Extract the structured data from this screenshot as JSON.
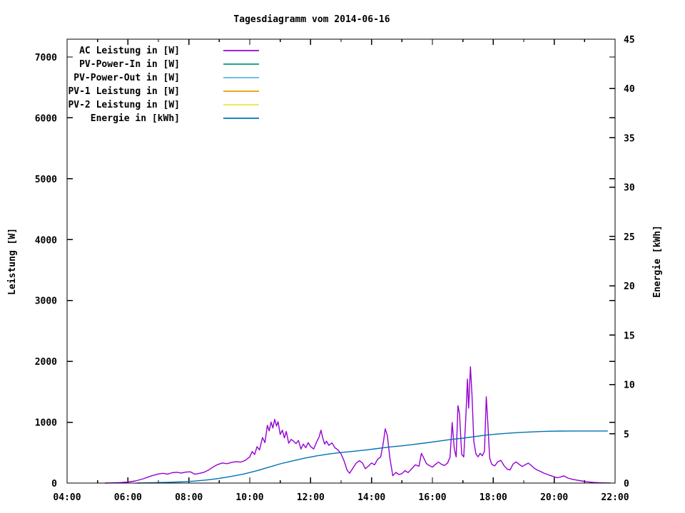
{
  "title": "Tagesdiagramm vom 2014-06-16",
  "colors": {
    "background": "#ffffff",
    "axis": "#000000",
    "ac": "#9400d3",
    "pv_power_in": "#009e73",
    "pv_power_out": "#56b4e9",
    "pv1": "#e69f00",
    "pv2": "#f0e442",
    "energie": "#0072b2"
  },
  "axes": {
    "x": {
      "min_hour": 4,
      "max_hour": 22,
      "major_ticks": [
        {
          "hour": 4,
          "label": "04:00"
        },
        {
          "hour": 6,
          "label": "06:00"
        },
        {
          "hour": 8,
          "label": "08:00"
        },
        {
          "hour": 10,
          "label": "10:00"
        },
        {
          "hour": 12,
          "label": "12:00"
        },
        {
          "hour": 14,
          "label": "14:00"
        },
        {
          "hour": 16,
          "label": "16:00"
        },
        {
          "hour": 18,
          "label": "18:00"
        },
        {
          "hour": 20,
          "label": "20:00"
        },
        {
          "hour": 22,
          "label": "22:00"
        }
      ],
      "minor_tick_hours": [
        5,
        7,
        9,
        11,
        13,
        15,
        17,
        19,
        21
      ]
    },
    "y_left": {
      "label": "Leistung [W]",
      "min": 0,
      "max_tick": 7000,
      "tick_step": 1000,
      "ticks": [
        "0",
        "1000",
        "2000",
        "3000",
        "4000",
        "5000",
        "6000",
        "7000"
      ]
    },
    "y_right": {
      "label": "Energie [kWh]",
      "min": 0,
      "max_tick": 45,
      "tick_step": 5,
      "ticks": [
        "0",
        "5",
        "10",
        "15",
        "20",
        "25",
        "30",
        "35",
        "40",
        "45"
      ]
    }
  },
  "chart_data": {
    "type": "line",
    "title": "Tagesdiagramm vom 2014-06-16",
    "xlabel": "",
    "x_format": "HH:MM",
    "x_range_hours": [
      4,
      22
    ],
    "y_left_label": "Leistung [W]",
    "y_left_range": [
      0,
      7292
    ],
    "y_right_label": "Energie [kWh]",
    "y_right_range": [
      0,
      45
    ],
    "grid": false,
    "legend_position": "top-left-inside",
    "series": [
      {
        "name": "AC Leistung in [W]",
        "color": "#9400d3",
        "y_axis": "left",
        "points": [
          [
            5.25,
            0
          ],
          [
            5.5,
            3
          ],
          [
            5.75,
            8
          ],
          [
            6.0,
            18
          ],
          [
            6.25,
            35
          ],
          [
            6.5,
            70
          ],
          [
            6.75,
            115
          ],
          [
            7.0,
            150
          ],
          [
            7.15,
            160
          ],
          [
            7.3,
            148
          ],
          [
            7.45,
            170
          ],
          [
            7.6,
            178
          ],
          [
            7.75,
            165
          ],
          [
            7.9,
            180
          ],
          [
            8.05,
            185
          ],
          [
            8.2,
            145
          ],
          [
            8.35,
            160
          ],
          [
            8.5,
            178
          ],
          [
            8.65,
            215
          ],
          [
            8.8,
            265
          ],
          [
            8.95,
            305
          ],
          [
            9.1,
            330
          ],
          [
            9.25,
            318
          ],
          [
            9.4,
            338
          ],
          [
            9.55,
            352
          ],
          [
            9.7,
            344
          ],
          [
            9.85,
            372
          ],
          [
            10.0,
            430
          ],
          [
            10.08,
            518
          ],
          [
            10.16,
            468
          ],
          [
            10.24,
            598
          ],
          [
            10.32,
            545
          ],
          [
            10.42,
            748
          ],
          [
            10.5,
            665
          ],
          [
            10.58,
            948
          ],
          [
            10.64,
            858
          ],
          [
            10.7,
            1002
          ],
          [
            10.76,
            905
          ],
          [
            10.82,
            1048
          ],
          [
            10.88,
            938
          ],
          [
            10.93,
            1008
          ],
          [
            11.0,
            798
          ],
          [
            11.07,
            868
          ],
          [
            11.14,
            742
          ],
          [
            11.2,
            848
          ],
          [
            11.28,
            655
          ],
          [
            11.36,
            718
          ],
          [
            11.44,
            688
          ],
          [
            11.52,
            648
          ],
          [
            11.6,
            700
          ],
          [
            11.68,
            560
          ],
          [
            11.76,
            640
          ],
          [
            11.84,
            580
          ],
          [
            11.92,
            665
          ],
          [
            12.0,
            600
          ],
          [
            12.1,
            560
          ],
          [
            12.2,
            680
          ],
          [
            12.28,
            760
          ],
          [
            12.34,
            868
          ],
          [
            12.4,
            740
          ],
          [
            12.46,
            640
          ],
          [
            12.52,
            690
          ],
          [
            12.6,
            620
          ],
          [
            12.7,
            660
          ],
          [
            12.8,
            580
          ],
          [
            12.9,
            545
          ],
          [
            13.0,
            480
          ],
          [
            13.1,
            360
          ],
          [
            13.2,
            210
          ],
          [
            13.28,
            162
          ],
          [
            13.4,
            255
          ],
          [
            13.5,
            330
          ],
          [
            13.6,
            368
          ],
          [
            13.7,
            330
          ],
          [
            13.8,
            235
          ],
          [
            13.9,
            280
          ],
          [
            14.0,
            330
          ],
          [
            14.1,
            300
          ],
          [
            14.2,
            390
          ],
          [
            14.3,
            430
          ],
          [
            14.38,
            640
          ],
          [
            14.45,
            892
          ],
          [
            14.52,
            780
          ],
          [
            14.6,
            420
          ],
          [
            14.7,
            120
          ],
          [
            14.8,
            175
          ],
          [
            14.9,
            140
          ],
          [
            15.0,
            155
          ],
          [
            15.1,
            205
          ],
          [
            15.2,
            172
          ],
          [
            15.32,
            235
          ],
          [
            15.44,
            300
          ],
          [
            15.56,
            278
          ],
          [
            15.64,
            488
          ],
          [
            15.7,
            430
          ],
          [
            15.8,
            322
          ],
          [
            15.9,
            288
          ],
          [
            16.0,
            262
          ],
          [
            16.1,
            308
          ],
          [
            16.2,
            345
          ],
          [
            16.3,
            308
          ],
          [
            16.4,
            288
          ],
          [
            16.5,
            330
          ],
          [
            16.58,
            425
          ],
          [
            16.65,
            995
          ],
          [
            16.72,
            560
          ],
          [
            16.78,
            430
          ],
          [
            16.84,
            1272
          ],
          [
            16.89,
            1140
          ],
          [
            16.96,
            472
          ],
          [
            17.03,
            430
          ],
          [
            17.1,
            1090
          ],
          [
            17.15,
            1708
          ],
          [
            17.19,
            1230
          ],
          [
            17.25,
            1912
          ],
          [
            17.3,
            1440
          ],
          [
            17.36,
            690
          ],
          [
            17.43,
            478
          ],
          [
            17.5,
            432
          ],
          [
            17.57,
            488
          ],
          [
            17.64,
            448
          ],
          [
            17.71,
            525
          ],
          [
            17.77,
            1418
          ],
          [
            17.82,
            980
          ],
          [
            17.88,
            415
          ],
          [
            17.95,
            308
          ],
          [
            18.05,
            282
          ],
          [
            18.15,
            352
          ],
          [
            18.25,
            372
          ],
          [
            18.35,
            288
          ],
          [
            18.45,
            232
          ],
          [
            18.55,
            215
          ],
          [
            18.65,
            312
          ],
          [
            18.75,
            348
          ],
          [
            18.85,
            308
          ],
          [
            18.95,
            272
          ],
          [
            19.05,
            302
          ],
          [
            19.15,
            328
          ],
          [
            19.25,
            288
          ],
          [
            19.35,
            242
          ],
          [
            19.45,
            212
          ],
          [
            19.55,
            192
          ],
          [
            19.65,
            165
          ],
          [
            19.75,
            148
          ],
          [
            19.85,
            128
          ],
          [
            19.95,
            112
          ],
          [
            20.1,
            88
          ],
          [
            20.22,
            102
          ],
          [
            20.32,
            118
          ],
          [
            20.45,
            82
          ],
          [
            20.6,
            62
          ],
          [
            20.75,
            48
          ],
          [
            20.9,
            35
          ],
          [
            21.1,
            20
          ],
          [
            21.3,
            10
          ],
          [
            21.5,
            5
          ],
          [
            21.7,
            2
          ],
          [
            21.85,
            1
          ]
        ]
      },
      {
        "name": "PV-Power-In in [W]",
        "color": "#009e73",
        "y_axis": "left",
        "points": []
      },
      {
        "name": "PV-Power-Out in [W]",
        "color": "#56b4e9",
        "y_axis": "left",
        "points": []
      },
      {
        "name": "PV-1 Leistung in [W]",
        "color": "#e69f00",
        "y_axis": "left",
        "points": []
      },
      {
        "name": "PV-2 Leistung in [W]",
        "color": "#f0e442",
        "y_axis": "left",
        "points": []
      },
      {
        "name": "Energie in [kWh]",
        "color": "#0072b2",
        "y_axis": "right",
        "points": [
          [
            6.3,
            0
          ],
          [
            6.6,
            0.02
          ],
          [
            7.0,
            0.05
          ],
          [
            7.4,
            0.09
          ],
          [
            7.8,
            0.13
          ],
          [
            8.2,
            0.2
          ],
          [
            8.6,
            0.32
          ],
          [
            9.0,
            0.48
          ],
          [
            9.4,
            0.68
          ],
          [
            9.8,
            0.92
          ],
          [
            10.2,
            1.22
          ],
          [
            10.6,
            1.58
          ],
          [
            11.0,
            1.95
          ],
          [
            11.4,
            2.25
          ],
          [
            11.8,
            2.52
          ],
          [
            12.2,
            2.76
          ],
          [
            12.6,
            2.95
          ],
          [
            13.0,
            3.1
          ],
          [
            13.4,
            3.22
          ],
          [
            13.8,
            3.35
          ],
          [
            14.2,
            3.5
          ],
          [
            14.6,
            3.66
          ],
          [
            15.0,
            3.78
          ],
          [
            15.4,
            3.92
          ],
          [
            15.8,
            4.08
          ],
          [
            16.2,
            4.25
          ],
          [
            16.6,
            4.42
          ],
          [
            17.0,
            4.55
          ],
          [
            17.4,
            4.72
          ],
          [
            17.8,
            4.88
          ],
          [
            18.2,
            4.99
          ],
          [
            18.6,
            5.08
          ],
          [
            19.0,
            5.15
          ],
          [
            19.4,
            5.21
          ],
          [
            19.8,
            5.25
          ],
          [
            20.2,
            5.27
          ],
          [
            20.6,
            5.28
          ],
          [
            21.0,
            5.28
          ],
          [
            21.4,
            5.28
          ],
          [
            21.75,
            5.28
          ]
        ]
      }
    ]
  }
}
